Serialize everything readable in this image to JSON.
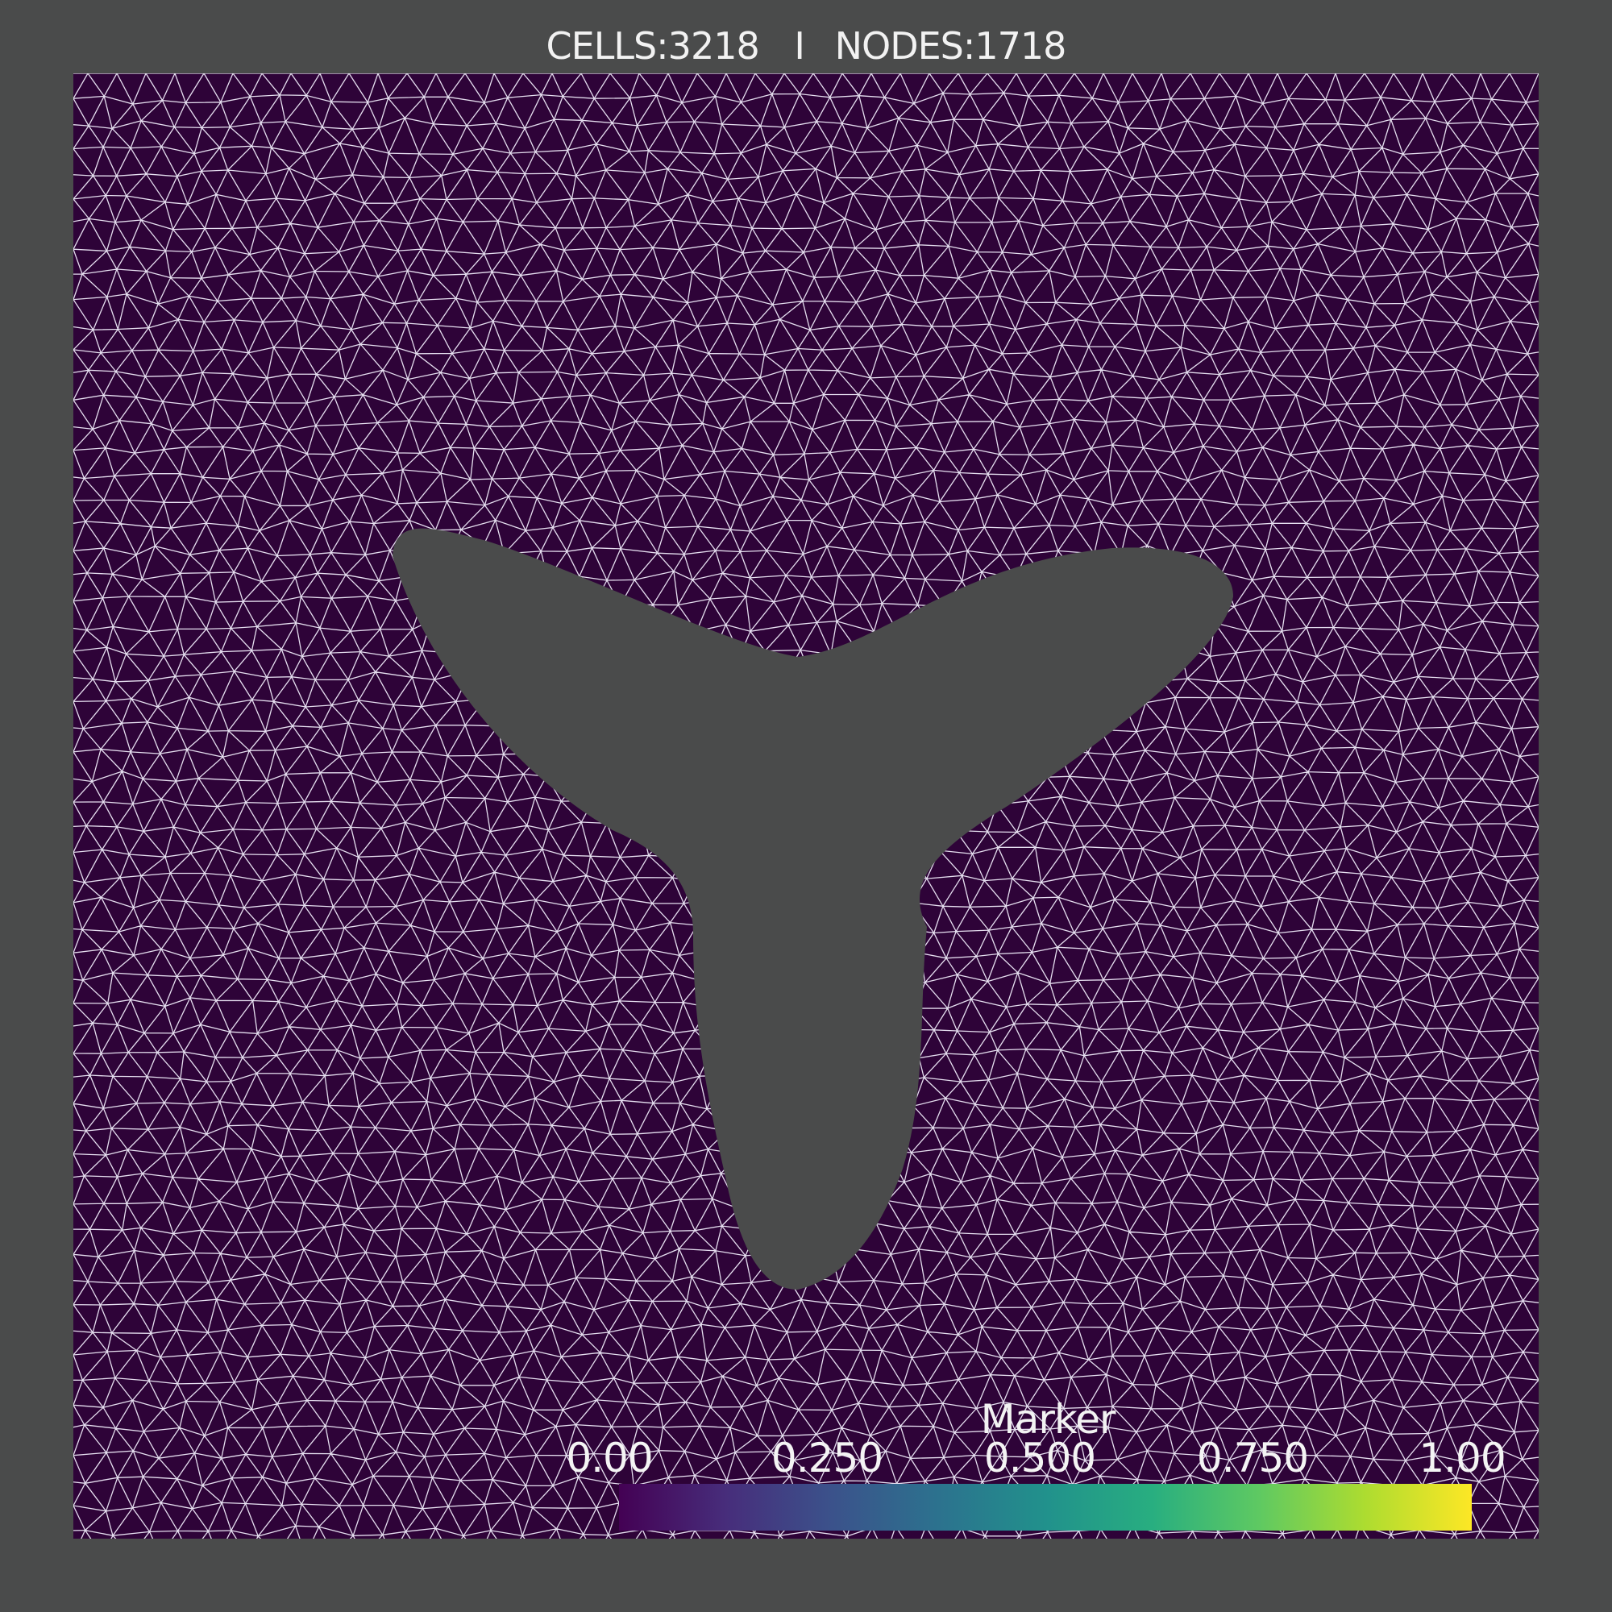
{
  "header": {
    "cells_label": "CELLS:3218",
    "separator": "I",
    "nodes_label": "NODES:1718"
  },
  "mesh": {
    "domain_color": "#2e0338",
    "edge_color": "#e6dff0",
    "hole_color": "#4a4b4b",
    "background_color": "#4a4b4b"
  },
  "colorbar": {
    "title": "Marker",
    "colormap": "viridis",
    "range": [
      0.0,
      1.0
    ],
    "tick_labels": [
      "0.00",
      "0.250",
      "0.500",
      "0.750",
      "1.00"
    ],
    "stops": [
      "#440154",
      "#472d7b",
      "#3b528b",
      "#2c728e",
      "#21918c",
      "#28ae80",
      "#5ec962",
      "#addc30",
      "#fde725"
    ]
  }
}
